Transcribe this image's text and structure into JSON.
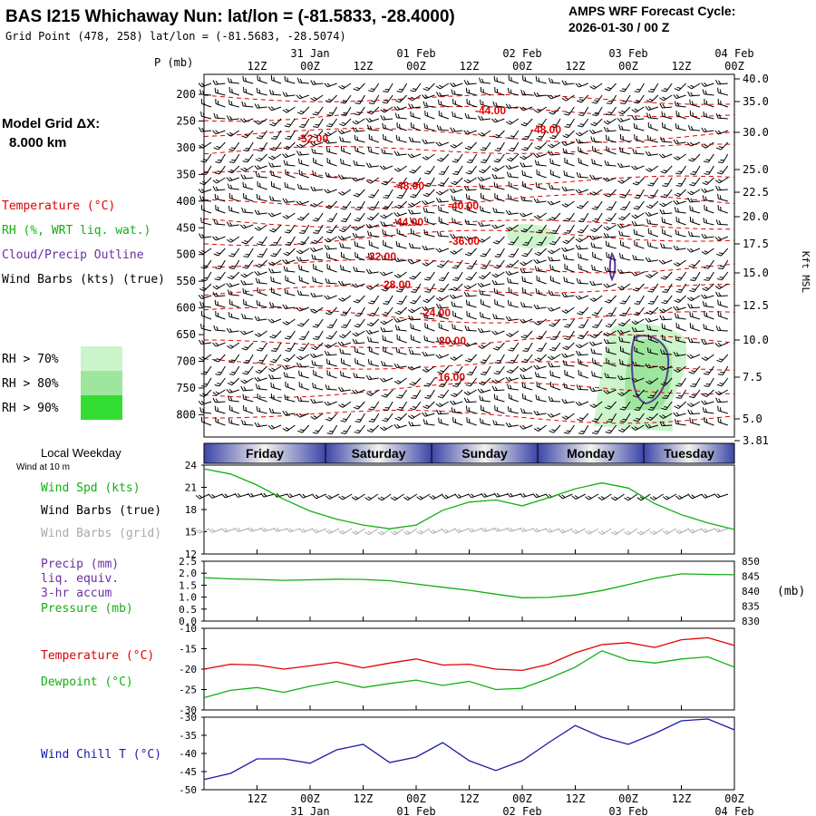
{
  "header": {
    "title": "BAS I215 Whichaway Nun:  lat/lon = (-81.5833, -28.4000)",
    "subtitle": "Grid Point (478, 258) lat/lon = (-81.5683, -28.5074)",
    "forecast_label": "AMPS WRF Forecast Cycle:",
    "forecast_cycle": "2026-01-30 / 00  Z"
  },
  "time_axis": {
    "hour_labels": [
      "12Z",
      "00Z",
      "12Z",
      "00Z",
      "12Z",
      "00Z",
      "12Z",
      "00Z",
      "12Z",
      "00Z"
    ],
    "date_labels": [
      "31 Jan",
      "01 Feb",
      "02 Feb",
      "03 Feb",
      "04 Feb"
    ],
    "weekdays": [
      "Friday",
      "Saturday",
      "Sunday",
      "Monday",
      "Tuesday"
    ],
    "weekday_label": "Local Weekday"
  },
  "left_legend": {
    "grid_title": "Model Grid ΔX:",
    "grid_value": "8.000 km",
    "items": [
      {
        "text": "Temperature (°C)",
        "color": "#e00000"
      },
      {
        "text": "RH (%, WRT liq. wat.)",
        "color": "#12b012"
      },
      {
        "text": "Cloud/Precip Outline",
        "color": "#6a2fa0"
      },
      {
        "text": "Wind Barbs (kts) (true)",
        "color": "#000000"
      }
    ],
    "rh_levels": [
      {
        "text": "RH > 70%",
        "color": "#ccf5cc"
      },
      {
        "text": "RH > 80%",
        "color": "#9ee69e"
      },
      {
        "text": "RH > 90%",
        "color": "#33dd33"
      }
    ]
  },
  "colors": {
    "weekday_bar": "#3c46a8",
    "cross_temp": "#e00000",
    "rh_line": "#12b012",
    "cloud": "#5a3a9a",
    "precip": "#6a2fa0",
    "pressure": "#12b012",
    "temperature": "#e00000",
    "dewpoint": "#12b012",
    "windchill": "#1a1aa8",
    "wind_speed": "#12b012",
    "barbs_grid": "#aaaaaa"
  },
  "chart_data": [
    {
      "type": "contour",
      "panel": "cross-section",
      "ylabel": "P (mb)",
      "ylabel_right": "Kft MSL",
      "pressure_ticks": [
        200,
        250,
        300,
        350,
        400,
        450,
        500,
        550,
        600,
        650,
        700,
        750,
        800
      ],
      "height_ticks": [
        "40.0",
        "35.0",
        "30.0",
        "25.0",
        "22.5",
        "20.0",
        "17.5",
        "15.0",
        "12.5",
        "10.0",
        "7.5",
        "5.0",
        "3.81"
      ],
      "temperature_contour_labels": [
        "-52.00",
        "-48.00",
        "-44.00",
        "-48.00",
        "-40.00",
        "-44.00",
        "-36.00",
        "-32.00",
        "-28.00",
        "-24.00",
        "-20.00",
        "-16.00"
      ]
    },
    {
      "type": "line",
      "panel": "wind",
      "label_top": "Wind at 10 m",
      "series_labels": [
        "Wind Spd (kts)",
        "Wind Barbs (true)",
        "Wind Barbs (grid)"
      ],
      "ylim": [
        12,
        24
      ],
      "yticks": [
        12,
        15,
        18,
        21,
        24
      ],
      "x_hours": [
        0,
        6,
        12,
        18,
        24,
        30,
        36,
        42,
        48,
        54,
        60,
        66,
        72,
        78,
        84,
        90,
        96,
        102,
        108,
        114,
        120
      ],
      "wind_speed": [
        23.5,
        22.8,
        21.3,
        19.4,
        17.8,
        16.7,
        15.9,
        15.4,
        15.9,
        17.9,
        19.0,
        19.3,
        18.5,
        19.6,
        20.8,
        21.6,
        20.9,
        18.8,
        17.3,
        16.2,
        15.3
      ]
    },
    {
      "type": "line",
      "panel": "precip-pressure",
      "precip_label": [
        "Precip (mm)",
        "liq. equiv.",
        "3-hr accum"
      ],
      "pressure_label": "Pressure (mb)",
      "right_unit": "(mb)",
      "precip_ylim": [
        0,
        2.5
      ],
      "precip_ticks": [
        "0.0",
        "0.5",
        "1.0",
        "1.5",
        "2.0",
        "2.5"
      ],
      "pressure_ylim": [
        830,
        850
      ],
      "pressure_ticks": [
        "830",
        "835",
        "840",
        "845",
        "850"
      ],
      "x_hours": [
        0,
        6,
        12,
        18,
        24,
        30,
        36,
        42,
        48,
        54,
        60,
        66,
        72,
        78,
        84,
        90,
        96,
        102,
        108,
        114,
        120
      ],
      "pressure": [
        844.5,
        844.1,
        843.9,
        843.6,
        843.8,
        844.0,
        843.9,
        843.5,
        842.4,
        841.3,
        840.3,
        839.0,
        837.8,
        837.9,
        838.7,
        840.2,
        842.2,
        844.3,
        845.8,
        845.6,
        845.5
      ]
    },
    {
      "type": "line",
      "panel": "temperature",
      "series": [
        {
          "name": "Temperature (°C)",
          "values": [
            -20.0,
            -18.8,
            -19.0,
            -20.0,
            -19.2,
            -18.3,
            -19.7,
            -18.5,
            -17.5,
            -19.0,
            -18.8,
            -20.0,
            -20.3,
            -18.8,
            -16.0,
            -14.0,
            -13.5,
            -14.7,
            -12.8,
            -12.3,
            -14.2
          ]
        },
        {
          "name": "Dewpoint (°C)",
          "values": [
            -27.0,
            -25.2,
            -24.5,
            -25.7,
            -24.2,
            -23.0,
            -24.5,
            -23.5,
            -22.7,
            -24.0,
            -23.0,
            -25.0,
            -24.7,
            -22.3,
            -19.5,
            -15.5,
            -17.8,
            -18.5,
            -17.5,
            -17.0,
            -19.5
          ]
        }
      ],
      "ylim": [
        -30,
        -10
      ],
      "yticks": [
        -30,
        -25,
        -20,
        -15,
        -10
      ],
      "x_hours": [
        0,
        6,
        12,
        18,
        24,
        30,
        36,
        42,
        48,
        54,
        60,
        66,
        72,
        78,
        84,
        90,
        96,
        102,
        108,
        114,
        120
      ]
    },
    {
      "type": "line",
      "panel": "windchill",
      "series": [
        {
          "name": "Wind Chill T (°C)",
          "values": [
            -47.2,
            -45.5,
            -41.5,
            -41.5,
            -42.7,
            -39.0,
            -37.5,
            -42.5,
            -41.0,
            -37.0,
            -42.0,
            -44.7,
            -42.0,
            -37.0,
            -32.3,
            -35.5,
            -37.5,
            -34.5,
            -31.0,
            -30.5,
            -33.5
          ]
        }
      ],
      "ylim": [
        -50,
        -30
      ],
      "yticks": [
        -50,
        -45,
        -40,
        -35,
        -30
      ],
      "x_hours": [
        0,
        6,
        12,
        18,
        24,
        30,
        36,
        42,
        48,
        54,
        60,
        66,
        72,
        78,
        84,
        90,
        96,
        102,
        108,
        114,
        120
      ]
    }
  ]
}
